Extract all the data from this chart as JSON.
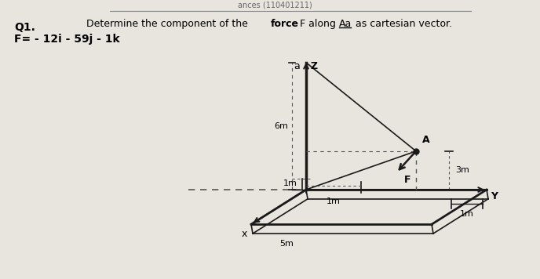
{
  "q_label": "Q1.",
  "title_line1": "Determine the component of the ",
  "title_bold": "force F",
  "title_line1b": " along ",
  "title_Aa": "Aa",
  "title_line2": " as cartesian vector.",
  "force_label": "F= - 12i - 59j - 1k",
  "bg_color": "#e8e5df",
  "header_line_color": "#888888",
  "z_label": "Z",
  "a_label": "a",
  "x_label": "x",
  "y_label": "Y",
  "label_6m": "6m",
  "label_1m_vert": "1m",
  "label_1m_horiz": "1m",
  "label_5m": "5m",
  "label_3m": "3m",
  "label_1m_y": "1m",
  "label_1m_orig": "1m",
  "label_A": "A",
  "label_F": "F",
  "line_color": "#1a1a1a",
  "dashed_color": "#555555"
}
